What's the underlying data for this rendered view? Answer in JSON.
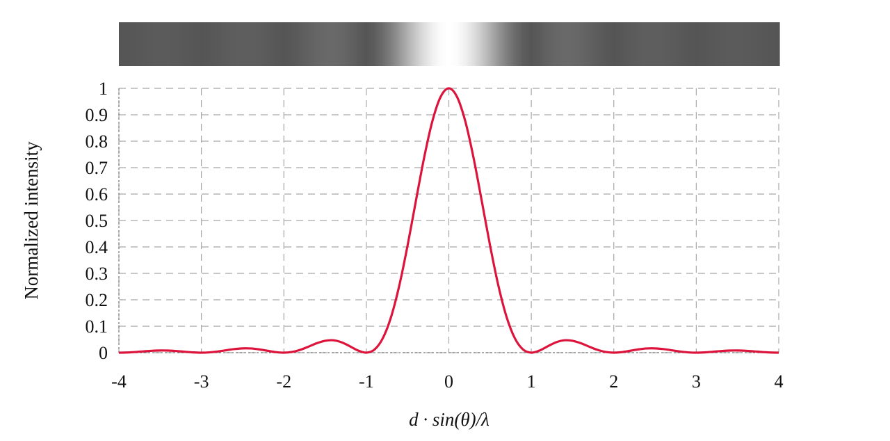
{
  "chart_data": {
    "type": "line",
    "title": "",
    "xlabel": "d · sin(θ)/λ",
    "ylabel": "Normalized intensity",
    "xlim": [
      -4,
      4
    ],
    "ylim": [
      0,
      1
    ],
    "xticks": [
      "-4",
      "-3",
      "-2",
      "-1",
      "0",
      "1",
      "2",
      "3",
      "4"
    ],
    "yticks": [
      "0",
      "0.1",
      "0.2",
      "0.3",
      "0.4",
      "0.5",
      "0.6",
      "0.7",
      "0.8",
      "0.9",
      "1"
    ],
    "grid": true,
    "grid_style": "dashed",
    "legend": "none",
    "intensity_strip": "grayscale strip above the plot showing the same intensity profile (white at center)",
    "series": [
      {
        "color": "#dc143c",
        "x": [
          -4.0,
          -3.9,
          -3.8,
          -3.7,
          -3.6,
          -3.5,
          -3.4,
          -3.3,
          -3.2,
          -3.1,
          -3.0,
          -2.9,
          -2.8,
          -2.7,
          -2.6,
          -2.5,
          -2.4,
          -2.3,
          -2.2,
          -2.1,
          -2.0,
          -1.9,
          -1.8,
          -1.7,
          -1.6,
          -1.5,
          -1.4,
          -1.3,
          -1.2,
          -1.1,
          -1.0,
          -0.9,
          -0.8,
          -0.7,
          -0.6,
          -0.5,
          -0.4,
          -0.3,
          -0.2,
          -0.1,
          0.0,
          0.1,
          0.2,
          0.3,
          0.4,
          0.5,
          0.6,
          0.7,
          0.8,
          0.9,
          1.0,
          1.1,
          1.2,
          1.3,
          1.4,
          1.5,
          1.6,
          1.7,
          1.8,
          1.9,
          2.0,
          2.1,
          2.2,
          2.3,
          2.4,
          2.5,
          2.6,
          2.7,
          2.8,
          2.9,
          3.0,
          3.1,
          3.2,
          3.3,
          3.4,
          3.5,
          3.6,
          3.7,
          3.8,
          3.9,
          4.0
        ],
        "y": [
          0,
          0.0006,
          0.0024,
          0.0048,
          0.0071,
          0.0083,
          0.0079,
          0.0061,
          0.0034,
          0.001,
          0,
          0.0012,
          0.0045,
          0.0091,
          0.0136,
          0.0162,
          0.0159,
          0.0125,
          0.0072,
          0.0022,
          0,
          0.0027,
          0.0108,
          0.0229,
          0.0358,
          0.045,
          0.0468,
          0.0392,
          0.0243,
          0.008,
          0,
          0.0119,
          0.0547,
          0.1353,
          0.2546,
          0.4053,
          0.5728,
          0.7368,
          0.8751,
          0.9675,
          1,
          0.9675,
          0.8751,
          0.7368,
          0.5728,
          0.4053,
          0.2546,
          0.1353,
          0.0547,
          0.0119,
          0,
          0.008,
          0.0243,
          0.0392,
          0.0468,
          0.045,
          0.0358,
          0.0229,
          0.0108,
          0.0027,
          0,
          0.0022,
          0.0072,
          0.0125,
          0.0159,
          0.0162,
          0.0136,
          0.0091,
          0.0045,
          0.0012,
          0,
          0.001,
          0.0034,
          0.0061,
          0.0079,
          0.0083,
          0.0071,
          0.0048,
          0.0024,
          0.0006,
          0
        ]
      }
    ]
  }
}
